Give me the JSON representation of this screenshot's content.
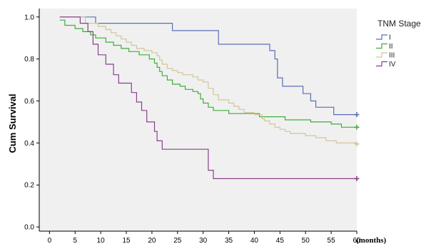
{
  "chart_data": {
    "type": "line",
    "title": "",
    "xlabel": "",
    "x_unit_label": "(months)",
    "ylabel": "Cum Survival",
    "xlim": [
      -2,
      60
    ],
    "ylim": [
      -0.02,
      1.04
    ],
    "x_ticks": [
      "0",
      "5",
      "10",
      "15",
      "20",
      "25",
      "30",
      "35",
      "40",
      "45",
      "50",
      "55",
      "60"
    ],
    "y_ticks": [
      "0.0",
      "0.2",
      "0.4",
      "0.6",
      "0.8",
      "1.0"
    ],
    "x_tick_values": [
      0,
      5,
      10,
      15,
      20,
      25,
      30,
      35,
      40,
      45,
      50,
      55,
      60
    ],
    "y_tick_values": [
      0.0,
      0.2,
      0.4,
      0.6,
      0.8,
      1.0
    ],
    "grid": false,
    "plot_background": "#f0f0f0",
    "legend_placement": "top-right, outside plot",
    "legend_title": "TNM Stage",
    "series": [
      {
        "name": "I",
        "color": "#5a6fb3",
        "steps": [
          [
            2,
            1.0
          ],
          [
            9,
            0.97
          ],
          [
            24,
            0.935
          ],
          [
            33,
            0.87
          ],
          [
            43,
            0.84
          ],
          [
            44,
            0.8
          ],
          [
            44.5,
            0.71
          ],
          [
            45.5,
            0.67
          ],
          [
            49.5,
            0.635
          ],
          [
            51,
            0.6
          ],
          [
            52,
            0.57
          ],
          [
            55.5,
            0.535
          ],
          [
            60,
            0.535
          ]
        ],
        "censor": [
          [
            60,
            0.535
          ]
        ]
      },
      {
        "name": "II",
        "color": "#3dae3d",
        "steps": [
          [
            2,
            0.985
          ],
          [
            3,
            0.96
          ],
          [
            5,
            0.945
          ],
          [
            6.5,
            0.93
          ],
          [
            8,
            0.915
          ],
          [
            9,
            0.9
          ],
          [
            11,
            0.88
          ],
          [
            12.5,
            0.865
          ],
          [
            14,
            0.85
          ],
          [
            15.5,
            0.835
          ],
          [
            17.5,
            0.82
          ],
          [
            19.5,
            0.8
          ],
          [
            20.5,
            0.78
          ],
          [
            21,
            0.76
          ],
          [
            21.5,
            0.74
          ],
          [
            22,
            0.72
          ],
          [
            23,
            0.7
          ],
          [
            24,
            0.68
          ],
          [
            25.5,
            0.67
          ],
          [
            26.5,
            0.655
          ],
          [
            28,
            0.645
          ],
          [
            29,
            0.635
          ],
          [
            29.5,
            0.61
          ],
          [
            30,
            0.59
          ],
          [
            31,
            0.57
          ],
          [
            32,
            0.555
          ],
          [
            35,
            0.54
          ],
          [
            41,
            0.525
          ],
          [
            46,
            0.51
          ],
          [
            51,
            0.5
          ],
          [
            55,
            0.49
          ],
          [
            57,
            0.475
          ],
          [
            60,
            0.475
          ]
        ],
        "censor": [
          [
            60,
            0.475
          ]
        ]
      },
      {
        "name": "III",
        "color": "#d2c69b",
        "steps": [
          [
            2,
            1.0
          ],
          [
            7,
            0.97
          ],
          [
            9.5,
            0.955
          ],
          [
            11,
            0.94
          ],
          [
            12,
            0.925
          ],
          [
            13,
            0.91
          ],
          [
            14,
            0.895
          ],
          [
            15,
            0.88
          ],
          [
            16,
            0.865
          ],
          [
            17,
            0.85
          ],
          [
            18.5,
            0.84
          ],
          [
            20,
            0.83
          ],
          [
            21,
            0.815
          ],
          [
            21.5,
            0.795
          ],
          [
            22,
            0.775
          ],
          [
            23,
            0.755
          ],
          [
            24,
            0.745
          ],
          [
            25,
            0.735
          ],
          [
            26,
            0.725
          ],
          [
            28,
            0.715
          ],
          [
            29,
            0.7
          ],
          [
            30,
            0.69
          ],
          [
            31,
            0.66
          ],
          [
            32,
            0.63
          ],
          [
            33,
            0.605
          ],
          [
            35,
            0.59
          ],
          [
            36,
            0.575
          ],
          [
            37,
            0.56
          ],
          [
            38,
            0.545
          ],
          [
            40,
            0.535
          ],
          [
            41.5,
            0.515
          ],
          [
            42,
            0.505
          ],
          [
            43,
            0.49
          ],
          [
            44,
            0.475
          ],
          [
            45,
            0.465
          ],
          [
            46,
            0.455
          ],
          [
            47,
            0.445
          ],
          [
            50,
            0.435
          ],
          [
            52,
            0.425
          ],
          [
            54,
            0.41
          ],
          [
            56,
            0.4
          ],
          [
            60,
            0.395
          ]
        ],
        "censor": [
          [
            60,
            0.395
          ]
        ]
      },
      {
        "name": "IV",
        "color": "#8b3f8b",
        "steps": [
          [
            2,
            1.0
          ],
          [
            6,
            0.97
          ],
          [
            7.5,
            0.93
          ],
          [
            8.5,
            0.87
          ],
          [
            9.5,
            0.82
          ],
          [
            11,
            0.775
          ],
          [
            12.5,
            0.725
          ],
          [
            13.5,
            0.685
          ],
          [
            16,
            0.64
          ],
          [
            17,
            0.595
          ],
          [
            18,
            0.555
          ],
          [
            19,
            0.5
          ],
          [
            20.5,
            0.455
          ],
          [
            21,
            0.41
          ],
          [
            22,
            0.37
          ],
          [
            31,
            0.27
          ],
          [
            32,
            0.23
          ],
          [
            60,
            0.23
          ]
        ],
        "censor": [
          [
            60,
            0.23
          ]
        ]
      }
    ]
  }
}
